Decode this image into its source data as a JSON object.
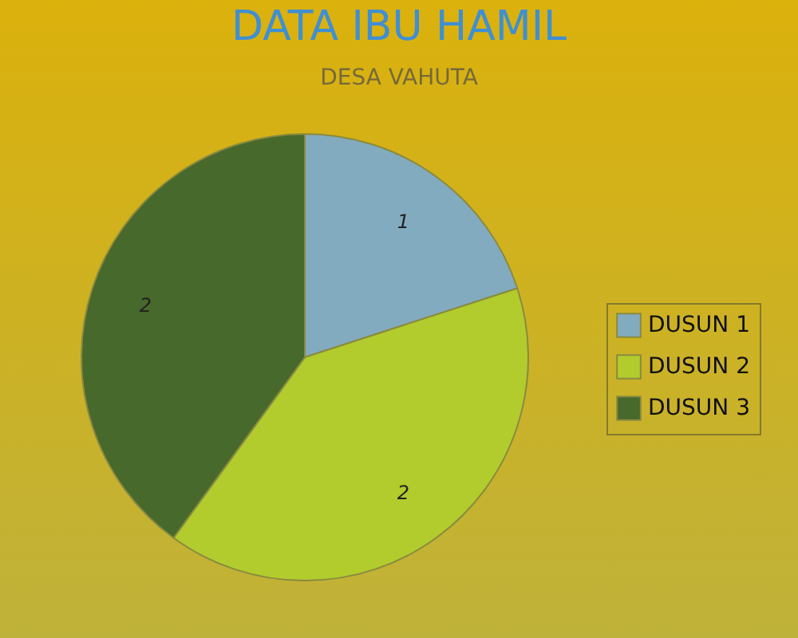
{
  "chart_data": {
    "type": "pie",
    "title": "DATA IBU HAMIL",
    "subtitle": "DESA VAHUTA",
    "categories": [
      "DUSUN 1",
      "DUSUN 2",
      "DUSUN 3"
    ],
    "values": [
      1,
      2,
      2
    ],
    "colors": [
      "#82abbf",
      "#b1cc2c",
      "#47692b"
    ],
    "data_labels": true,
    "legend": "right"
  }
}
